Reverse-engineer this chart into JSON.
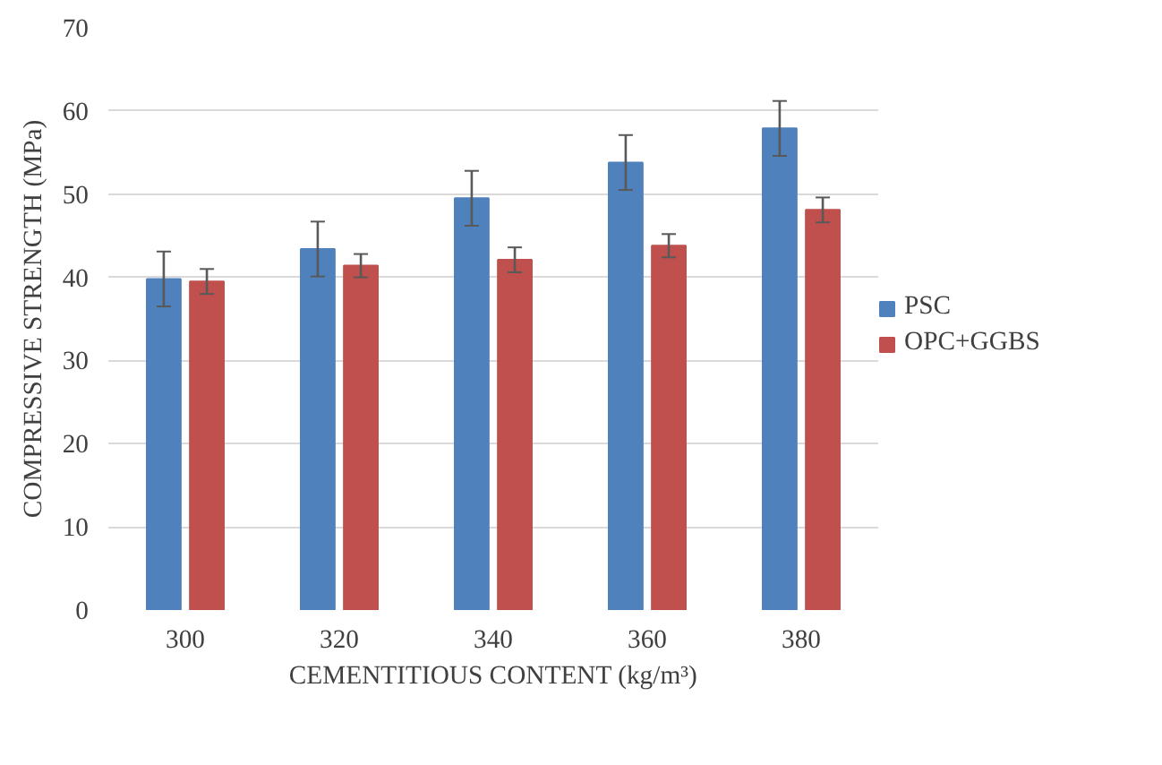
{
  "chart_data": {
    "type": "bar",
    "xlabel": "CEMENTITIOUS CONTENT (kg/m³)",
    "ylabel": "COMPRESSIVE STRENGTH (MPa)",
    "categories": [
      "300",
      "320",
      "340",
      "360",
      "380"
    ],
    "series": [
      {
        "name": "PSC",
        "color": "#4f81bd",
        "values": [
          39.8,
          43.4,
          49.5,
          53.8,
          57.9
        ],
        "errors": [
          3.3,
          3.3,
          3.3,
          3.3,
          3.3
        ]
      },
      {
        "name": "OPC+GGBS",
        "color": "#c0504d",
        "values": [
          39.5,
          41.4,
          42.1,
          43.8,
          48.1
        ],
        "errors": [
          1.5,
          1.4,
          1.5,
          1.4,
          1.5
        ]
      }
    ],
    "ylim": [
      0,
      70
    ],
    "yticks": [
      0,
      10,
      20,
      30,
      40,
      50,
      60,
      70
    ],
    "grid": "y",
    "legend": "right"
  }
}
